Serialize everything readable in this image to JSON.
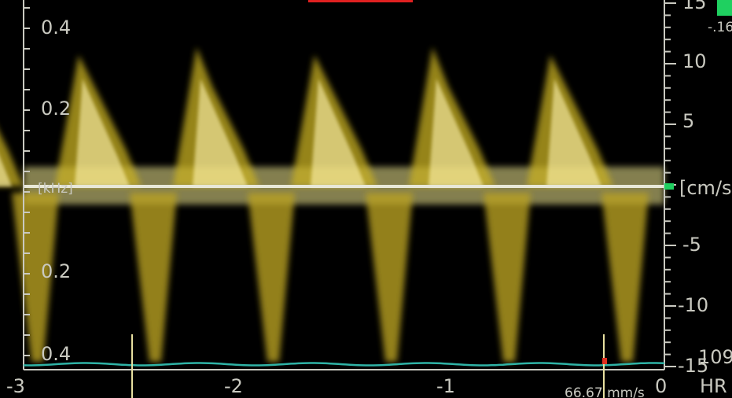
{
  "left_scale": {
    "labels": [
      "0.4",
      "0.2",
      "[kHz]",
      "0.2",
      "0.4"
    ]
  },
  "right_scale": {
    "labels": [
      "15",
      "10",
      "5",
      "[cm/s]",
      "-5",
      "-10",
      "-15"
    ]
  },
  "time_axis": {
    "labels": [
      "-3",
      "-2",
      "-1",
      "0"
    ]
  },
  "sweep_speed": "66.67 mm/s",
  "heart_rate": {
    "label": "HR",
    "value": "109"
  },
  "corner_value": "-.16"
}
